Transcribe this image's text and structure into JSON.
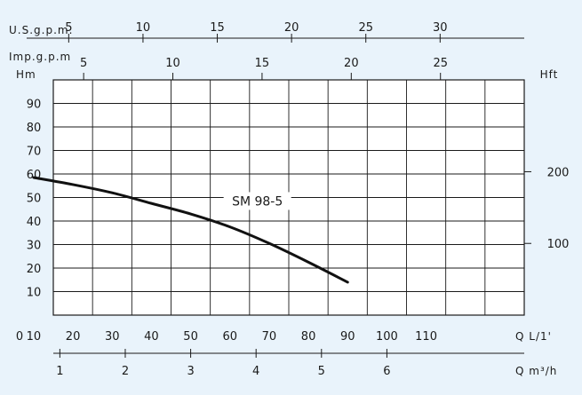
{
  "chart_data": {
    "type": "line",
    "title": "",
    "series": [
      {
        "name": "SM 98-5",
        "x": [
          10,
          20,
          30,
          40,
          50,
          60,
          70,
          80,
          90
        ],
        "y": [
          58.5,
          55.5,
          52,
          47.5,
          43,
          37.5,
          30.5,
          22.5,
          14
        ]
      }
    ],
    "axes": {
      "q_lpm": {
        "label": "Q L/1'",
        "ticks": [
          0,
          10,
          20,
          30,
          40,
          50,
          60,
          70,
          80,
          90,
          100,
          110
        ],
        "range": [
          0,
          120
        ]
      },
      "q_m3h": {
        "label": "Q m³/h",
        "ticks": [
          1,
          2,
          3,
          4,
          5,
          6
        ]
      },
      "us_gpm": {
        "label": "U.S.g.p.m.",
        "ticks": [
          5,
          10,
          15,
          20,
          25,
          30
        ]
      },
      "imp_gpm": {
        "label": "Imp.g.p.m",
        "ticks": [
          5,
          10,
          15,
          20,
          25
        ]
      },
      "head_m": {
        "label": "Hm",
        "ticks": [
          10,
          20,
          30,
          40,
          50,
          60,
          70,
          80,
          90
        ],
        "range": [
          0,
          100
        ]
      },
      "head_ft": {
        "label": "Hft",
        "ticks": [
          100,
          200
        ]
      }
    },
    "grid": true
  }
}
